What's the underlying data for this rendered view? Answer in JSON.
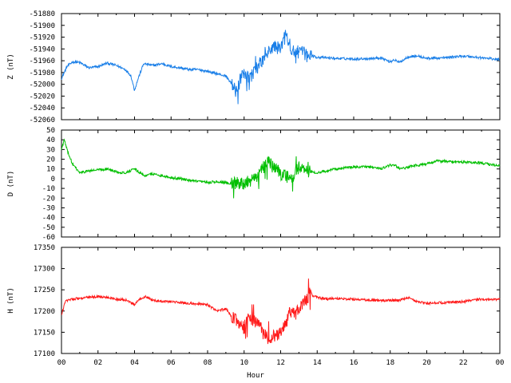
{
  "chart_data": [
    {
      "type": "line",
      "ylabel": "Z (nT)",
      "xlim": [
        0,
        24
      ],
      "ylim": [
        -52060,
        -51880
      ],
      "yticks": [
        -51880,
        -51900,
        -51920,
        -51940,
        -51960,
        -51980,
        -52000,
        -52020,
        -52040,
        -52060
      ],
      "series": [
        {
          "color": "#1a7fe8",
          "x": [
            0,
            0.3,
            0.6,
            1,
            1.5,
            2,
            2.5,
            3,
            3.5,
            3.8,
            4,
            4.2,
            4.5,
            5,
            5.5,
            6,
            6.5,
            7,
            7.5,
            8,
            8.5,
            9,
            9.3,
            9.6,
            9.8,
            10,
            10.3,
            10.6,
            11,
            11.3,
            11.6,
            12,
            12.3,
            12.6,
            13,
            13.5,
            14,
            15,
            16,
            17,
            17.5,
            18,
            18.2,
            18.5,
            19,
            19.5,
            20,
            21,
            22,
            23,
            24
          ],
          "y": [
            -51990,
            -51970,
            -51962,
            -51963,
            -51972,
            -51970,
            -51964,
            -51968,
            -51975,
            -51985,
            -52010,
            -51990,
            -51965,
            -51968,
            -51965,
            -51970,
            -51972,
            -51975,
            -51975,
            -51978,
            -51982,
            -51986,
            -51998,
            -52015,
            -51990,
            -51985,
            -51990,
            -51975,
            -51960,
            -51948,
            -51935,
            -51940,
            -51910,
            -51945,
            -51945,
            -51950,
            -51954,
            -51956,
            -51957,
            -51956,
            -51955,
            -51962,
            -51958,
            -51963,
            -51953,
            -51952,
            -51956,
            -51955,
            -51952,
            -51955,
            -51958
          ]
        }
      ]
    },
    {
      "type": "line",
      "ylabel": "D (nT)",
      "xlim": [
        0,
        24
      ],
      "ylim": [
        -60,
        50
      ],
      "yticks": [
        50,
        40,
        30,
        20,
        10,
        0,
        -10,
        -20,
        -30,
        -40,
        -50,
        -60
      ],
      "series": [
        {
          "color": "#00bf00",
          "x": [
            0,
            0.15,
            0.3,
            0.6,
            1,
            1.5,
            2,
            2.5,
            3,
            3.5,
            4,
            4.3,
            4.6,
            5,
            5.5,
            6,
            6.5,
            7,
            7.5,
            8,
            8.5,
            9,
            9.5,
            10,
            10.5,
            11,
            11.3,
            11.6,
            12,
            12.3,
            12.6,
            13,
            13.5,
            14,
            15,
            16,
            17,
            17.5,
            18,
            18.3,
            18.6,
            19,
            19.5,
            20,
            20.5,
            21,
            22,
            23,
            24
          ],
          "y": [
            30,
            40,
            30,
            15,
            6,
            8,
            9,
            10,
            7,
            6,
            10,
            6,
            3,
            5,
            3,
            1,
            0,
            -2,
            -3,
            -4,
            -3,
            -4,
            -5,
            -5,
            -2,
            10,
            18,
            12,
            5,
            3,
            0,
            12,
            8,
            6,
            10,
            12,
            12,
            10,
            14,
            13,
            10,
            12,
            14,
            15,
            18,
            18,
            17,
            16,
            13
          ]
        }
      ]
    },
    {
      "type": "line",
      "ylabel": "H (nT)",
      "xlabel": "Hour",
      "xlim": [
        0,
        24
      ],
      "ylim": [
        17100,
        17350
      ],
      "yticks": [
        17350,
        17300,
        17250,
        17200,
        17150,
        17100
      ],
      "xticks": [
        "00",
        "02",
        "04",
        "06",
        "08",
        "10",
        "12",
        "14",
        "16",
        "18",
        "20",
        "22",
        "00"
      ],
      "series": [
        {
          "color": "#ff1a1a",
          "x": [
            0,
            0.2,
            0.5,
            1,
            1.5,
            2,
            2.5,
            3,
            3.5,
            4,
            4.3,
            4.6,
            5,
            6,
            7,
            8,
            8.5,
            9,
            9.3,
            9.6,
            10,
            10.2,
            10.5,
            10.8,
            11,
            11.3,
            11.6,
            12,
            12.3,
            12.5,
            12.8,
            13,
            13.3,
            13.6,
            14,
            14.5,
            15,
            16,
            17,
            18,
            18.5,
            19,
            19.5,
            20,
            21,
            22,
            23,
            24
          ],
          "y": [
            17190,
            17222,
            17228,
            17230,
            17232,
            17234,
            17232,
            17228,
            17226,
            17215,
            17228,
            17235,
            17225,
            17222,
            17218,
            17215,
            17200,
            17205,
            17188,
            17178,
            17160,
            17185,
            17175,
            17178,
            17150,
            17135,
            17140,
            17150,
            17170,
            17200,
            17190,
            17210,
            17220,
            17240,
            17232,
            17228,
            17230,
            17228,
            17225,
            17225,
            17225,
            17232,
            17222,
            17218,
            17220,
            17222,
            17228,
            17227
          ]
        }
      ]
    }
  ]
}
